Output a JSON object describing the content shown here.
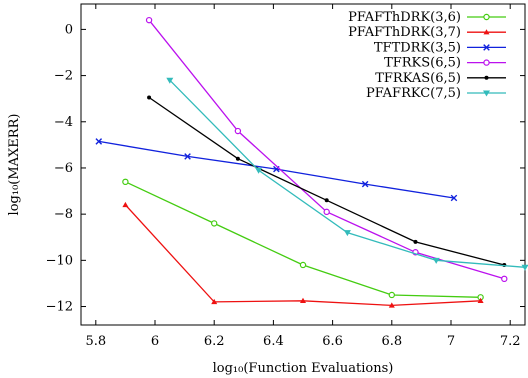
{
  "chart_data": {
    "type": "line",
    "title": "",
    "xlabel": "log₁₀(Function Evaluations)",
    "ylabel": "log₁₀(MAXERR)",
    "xlim": [
      5.75,
      7.25
    ],
    "ylim": [
      -12.8,
      1.1
    ],
    "xticks": [
      5.8,
      6,
      6.2,
      6.4,
      6.6,
      6.8,
      7,
      7.2
    ],
    "yticks": [
      0,
      -2,
      -4,
      -6,
      -8,
      -10,
      -12
    ],
    "xtick_labels": [
      "5.8",
      "6",
      "6.2",
      "6.4",
      "6.6",
      "6.8",
      "7",
      "7.2"
    ],
    "ytick_labels": [
      "0",
      "−2",
      "−4",
      "−6",
      "−8",
      "−10",
      "−12"
    ],
    "grid": false,
    "legend_position": "top-right",
    "series": [
      {
        "name": "PFAFThDRK(3,6)",
        "color": "#44cc11",
        "marker": "circle",
        "x": [
          5.9,
          6.2,
          6.5,
          6.8,
          7.1
        ],
        "y": [
          -6.6,
          -8.4,
          -10.2,
          -11.5,
          -11.6
        ]
      },
      {
        "name": "PFAFThDRK(3,7)",
        "color": "#ee1111",
        "marker": "triangle",
        "x": [
          5.9,
          6.2,
          6.5,
          6.8,
          7.1
        ],
        "y": [
          -7.6,
          -11.8,
          -11.75,
          -11.95,
          -11.75
        ]
      },
      {
        "name": "TFTDRK(3,5)",
        "color": "#1122dd",
        "marker": "cross",
        "x": [
          5.81,
          6.11,
          6.41,
          6.71,
          7.01
        ],
        "y": [
          -4.85,
          -5.5,
          -6.05,
          -6.7,
          -7.3
        ]
      },
      {
        "name": "TFRKS(6,5)",
        "color": "#bb11ee",
        "marker": "circle",
        "x": [
          5.98,
          6.28,
          6.58,
          6.88,
          7.18
        ],
        "y": [
          0.4,
          -4.4,
          -7.9,
          -9.65,
          -10.8
        ]
      },
      {
        "name": "TFRKAS(6,5)",
        "color": "#000000",
        "marker": "dot",
        "x": [
          5.98,
          6.28,
          6.58,
          6.88,
          7.18
        ],
        "y": [
          -2.95,
          -5.6,
          -7.4,
          -9.2,
          -10.2
        ]
      },
      {
        "name": "PFAFRKC(7,5)",
        "color": "#33bbbb",
        "marker": "triangle-down",
        "x": [
          6.05,
          6.35,
          6.65,
          6.95,
          7.25
        ],
        "y": [
          -2.2,
          -6.1,
          -8.8,
          -10.0,
          -10.3
        ]
      }
    ]
  }
}
